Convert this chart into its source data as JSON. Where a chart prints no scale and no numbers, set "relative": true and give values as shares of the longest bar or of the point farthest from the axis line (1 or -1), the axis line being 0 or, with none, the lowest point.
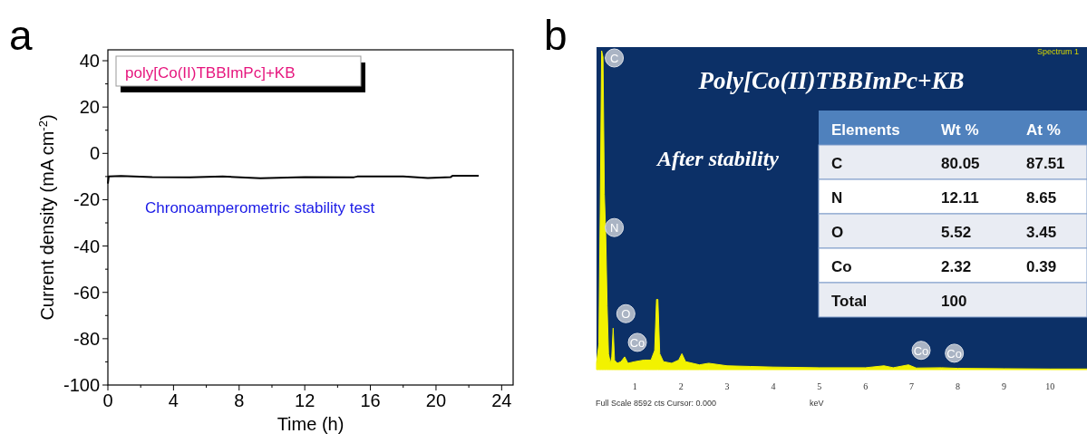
{
  "chart_data": [
    {
      "type": "line",
      "title": "a",
      "xlabel": "Time (h)",
      "ylabel": "Current density (mA cm$^{-2}$)",
      "xlim": [
        0,
        24.7
      ],
      "ylim": [
        -100,
        44.7
      ],
      "xticks": [
        0,
        {
          "value": 2,
          "label": null
        },
        4,
        {
          "value": 6,
          "label": null
        },
        8,
        {
          "value": 10,
          "label": null
        },
        12,
        {
          "value": 14,
          "label": null
        },
        16,
        {
          "value": 18,
          "label": null
        },
        20,
        {
          "value": 22,
          "label": null
        },
        24
      ],
      "yticks": [
        -100,
        {
          "value": -90,
          "label": null
        },
        -80,
        {
          "value": -70,
          "label": null
        },
        -60,
        {
          "value": -50,
          "label": null
        },
        -40,
        {
          "value": -30,
          "label": null
        },
        -20,
        {
          "value": -10,
          "label": null
        },
        0,
        {
          "value": 10,
          "label": null
        },
        20,
        {
          "value": 30,
          "label": null
        },
        40
      ],
      "annotations": [
        "poly[Co(II)TBBImPc]+KB",
        "Chronoamperometric stability test"
      ],
      "series": [
        {
          "color": "#000000",
          "x": [
            0,
            0.05,
            0.8,
            2.7,
            5,
            7,
            9.3,
            12,
            15,
            15.2,
            18,
            19.5,
            20.9,
            21,
            22.6
          ],
          "values": [
            -13,
            -10,
            -9.8,
            -10.2,
            -10.3,
            -10,
            -10.7,
            -10.2,
            -10.3,
            -10,
            -10,
            -10.6,
            -10.2,
            -9.7,
            -9.7
          ]
        }
      ]
    },
    {
      "type": "area",
      "title": "b",
      "xlabel": "keV",
      "relative": true,
      "xlim": [
        0.17,
        10.8
      ],
      "xticks": [
        1,
        2,
        3,
        4,
        5,
        6,
        7,
        8,
        9,
        10
      ],
      "annotations": [
        "Poly[Co(II)TBBImPc+KB",
        "After stability",
        "Spectrum 1",
        "Full Scale 8592 cts Cursor: 0.000",
        {
          "text": "C",
          "x": 0.28,
          "y": 1
        },
        {
          "text": "N",
          "x": 0.28,
          "y": 0.4
        },
        {
          "text": "O",
          "x": 0.53,
          "y": 0.13
        },
        {
          "text": "Co",
          "x": 0.78,
          "y": 0.04
        },
        {
          "text": "Co",
          "x": 6.93,
          "y": 0.015
        },
        {
          "text": "Co",
          "x": 7.65,
          "y": 0.006
        }
      ],
      "series": [
        {
          "color": "#f2f200",
          "x": [
            0.17,
            0.22,
            0.25,
            0.28,
            0.31,
            0.34,
            0.37,
            0.4,
            0.43,
            0.47,
            0.5,
            0.53,
            0.56,
            0.62,
            0.7,
            0.78,
            0.85,
            1.0,
            1.2,
            1.35,
            1.43,
            1.47,
            1.5,
            1.54,
            1.62,
            1.8,
            1.95,
            2.02,
            2.1,
            2.4,
            2.6,
            3.0,
            3.5,
            4.0,
            5.0,
            6.0,
            6.4,
            6.6,
            6.93,
            7.1,
            7.65,
            8.0,
            9.0,
            10.0,
            10.8
          ],
          "values": [
            0.02,
            0.08,
            0.5,
            1.0,
            0.98,
            0.55,
            0.42,
            0.2,
            0.05,
            0.02,
            0.04,
            0.13,
            0.03,
            0.02,
            0.025,
            0.04,
            0.02,
            0.025,
            0.03,
            0.03,
            0.06,
            0.22,
            0.22,
            0.05,
            0.025,
            0.02,
            0.03,
            0.05,
            0.025,
            0.015,
            0.02,
            0.012,
            0.01,
            0.008,
            0.006,
            0.006,
            0.012,
            0.006,
            0.015,
            0.005,
            0.006,
            0.004,
            0.003,
            0.002,
            0.002
          ]
        }
      ]
    },
    {
      "type": "other",
      "ylabel": "Elements",
      "categories": [
        "Wt %",
        "At %"
      ],
      "y_categories": [
        "C",
        "N",
        "O",
        "Co",
        "Total"
      ],
      "cell_labels": [
        [
          "80.05",
          "87.51"
        ],
        [
          "12.11",
          "8.65"
        ],
        [
          "5.52",
          "3.45"
        ],
        [
          "2.32",
          "0.39"
        ],
        [
          "100",
          null
        ]
      ]
    }
  ]
}
